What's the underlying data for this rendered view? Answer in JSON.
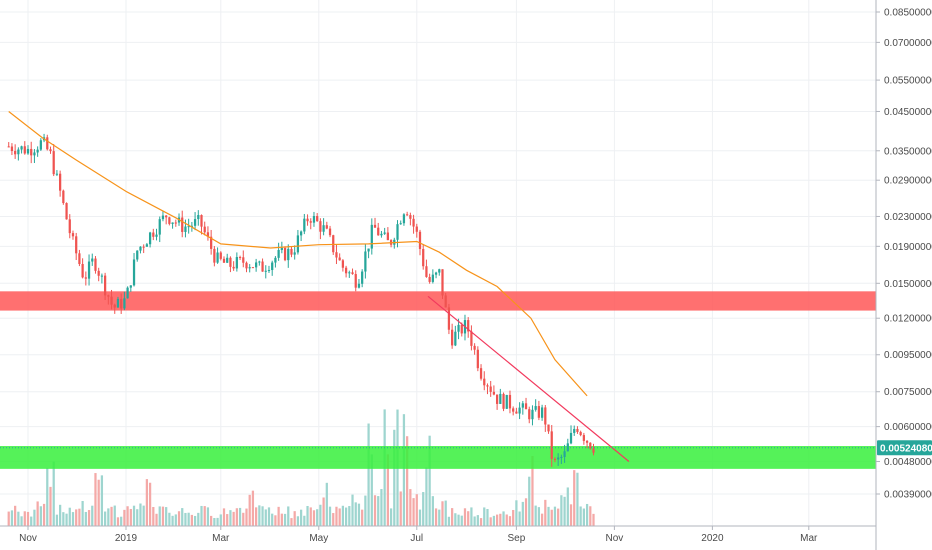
{
  "colors": {
    "up": "#26a69a",
    "down": "#ef5350",
    "grid": "#eef0f3",
    "axis_line": "#b2b5be",
    "ma": "#f7931a",
    "trendline": "#f23a5e",
    "resistance_zone": "#ff5757",
    "support_zone": "#37f03c",
    "last_price_bg": "#26a69a",
    "vol_up": "#9ed5cf",
    "vol_down": "#f4a9a7"
  },
  "chart_data": {
    "type": "candlestick",
    "title": "",
    "y_scale": "log",
    "y_ticks": [
      "0.08500000",
      "0.07000000",
      "0.05500000",
      "0.04500000",
      "0.03500000",
      "0.02900000",
      "0.02300000",
      "0.01900000",
      "0.01500000",
      "0.01200000",
      "0.00950000",
      "0.00750000",
      "0.00600000",
      "0.00480000",
      "0.00390000"
    ],
    "x_ticks": [
      "Nov",
      "2019",
      "Mar",
      "May",
      "Jul",
      "Sep",
      "Nov",
      "2020",
      "Mar"
    ],
    "x_range": [
      "2018-10-20",
      "2020-03-25"
    ],
    "last_price": "0.00524080",
    "grid": true,
    "price_path": [
      [
        "2018-10-20",
        0.036
      ],
      [
        "2018-11-01",
        0.0352
      ],
      [
        "2018-11-10",
        0.037
      ],
      [
        "2018-11-15",
        0.034
      ],
      [
        "2018-11-20",
        0.028
      ],
      [
        "2018-11-28",
        0.02
      ],
      [
        "2018-12-06",
        0.0155
      ],
      [
        "2018-12-12",
        0.0175
      ],
      [
        "2018-12-18",
        0.015
      ],
      [
        "2018-12-24",
        0.0128
      ],
      [
        "2019-01-01",
        0.0135
      ],
      [
        "2019-01-08",
        0.0185
      ],
      [
        "2019-01-16",
        0.0205
      ],
      [
        "2019-01-26",
        0.0232
      ],
      [
        "2019-02-06",
        0.0215
      ],
      [
        "2019-02-16",
        0.0222
      ],
      [
        "2019-02-26",
        0.0175
      ],
      [
        "2019-03-06",
        0.0168
      ],
      [
        "2019-03-16",
        0.0173
      ],
      [
        "2019-03-26",
        0.0165
      ],
      [
        "2019-04-05",
        0.0178
      ],
      [
        "2019-04-15",
        0.0185
      ],
      [
        "2019-04-25",
        0.0232
      ],
      [
        "2019-05-05",
        0.021
      ],
      [
        "2019-05-15",
        0.0168
      ],
      [
        "2019-05-25",
        0.0152
      ],
      [
        "2019-06-04",
        0.0215
      ],
      [
        "2019-06-14",
        0.0192
      ],
      [
        "2019-06-24",
        0.0248
      ],
      [
        "2019-07-01",
        0.0205
      ],
      [
        "2019-07-08",
        0.015
      ],
      [
        "2019-07-15",
        0.016
      ],
      [
        "2019-07-22",
        0.0105
      ],
      [
        "2019-08-01",
        0.0115
      ],
      [
        "2019-08-10",
        0.0085
      ],
      [
        "2019-08-20",
        0.0072
      ],
      [
        "2019-09-01",
        0.0068
      ],
      [
        "2019-09-10",
        0.0065
      ],
      [
        "2019-09-18",
        0.0066
      ],
      [
        "2019-09-24",
        0.0047
      ],
      [
        "2019-10-01",
        0.005
      ],
      [
        "2019-10-08",
        0.0061
      ],
      [
        "2019-10-15",
        0.0055
      ],
      [
        "2019-10-20",
        0.00524
      ]
    ],
    "series": [
      {
        "type": "moving_average",
        "points": [
          [
            "2018-10-20",
            0.045
          ],
          [
            "2018-11-10",
            0.038
          ],
          [
            "2018-12-01",
            0.033
          ],
          [
            "2019-01-01",
            0.027
          ],
          [
            "2019-02-01",
            0.0228
          ],
          [
            "2019-03-01",
            0.0193
          ],
          [
            "2019-04-01",
            0.0188
          ],
          [
            "2019-05-01",
            0.0192
          ],
          [
            "2019-06-01",
            0.0193
          ],
          [
            "2019-07-01",
            0.0196
          ],
          [
            "2019-07-15",
            0.0183
          ],
          [
            "2019-08-01",
            0.0163
          ],
          [
            "2019-08-20",
            0.0147
          ],
          [
            "2019-09-10",
            0.012
          ],
          [
            "2019-09-25",
            0.0092
          ],
          [
            "2019-10-15",
            0.0073
          ]
        ]
      },
      {
        "type": "trendline",
        "points": [
          [
            "2019-07-08",
            0.0138
          ],
          [
            "2019-11-10",
            0.0048
          ]
        ]
      }
    ],
    "zones": [
      {
        "name": "resistance",
        "from_price": 0.0126,
        "to_price": 0.01425
      },
      {
        "name": "support",
        "from_price": 0.00458,
        "to_price": 0.0053
      }
    ],
    "volume_spikes": [
      [
        "2018-11-15",
        0.5
      ],
      [
        "2018-12-15",
        0.55
      ],
      [
        "2019-01-15",
        0.4
      ],
      [
        "2019-03-20",
        0.35
      ],
      [
        "2019-05-05",
        0.35
      ],
      [
        "2019-06-02",
        0.8
      ],
      [
        "2019-06-12",
        0.9
      ],
      [
        "2019-06-18",
        1.0
      ],
      [
        "2019-06-24",
        0.9
      ],
      [
        "2019-07-08",
        0.7
      ],
      [
        "2019-09-10",
        0.55
      ],
      [
        "2019-10-01",
        0.35
      ],
      [
        "2019-10-08",
        0.45
      ]
    ]
  }
}
